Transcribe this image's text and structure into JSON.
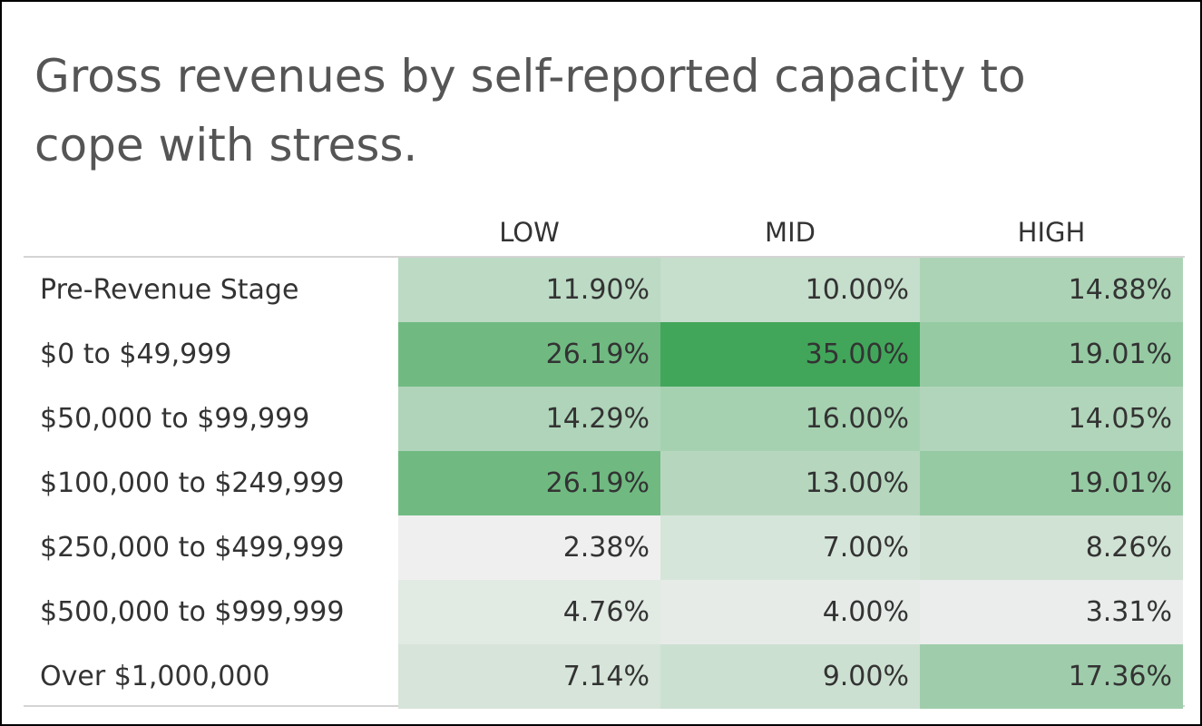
{
  "chart_data": {
    "type": "heatmap",
    "title": "Gross revenues by self-reported capacity to cope with stress.",
    "columns": [
      "LOW",
      "MID",
      "HIGH"
    ],
    "rows": [
      "Pre-Revenue Stage",
      "$0 to $49,999",
      "$50,000 to $99,999",
      "$100,000 to $249,999",
      "$250,000 to $499,999",
      "$500,000 to $999,999",
      "Over $1,000,000"
    ],
    "values": [
      [
        11.9,
        10.0,
        14.88
      ],
      [
        26.19,
        35.0,
        19.01
      ],
      [
        14.29,
        16.0,
        14.05
      ],
      [
        26.19,
        13.0,
        19.01
      ],
      [
        2.38,
        7.0,
        8.26
      ],
      [
        4.76,
        4.0,
        3.31
      ],
      [
        7.14,
        9.0,
        17.36
      ]
    ],
    "value_labels": [
      [
        "11.90%",
        "10.00%",
        "14.88%"
      ],
      [
        "26.19%",
        "35.00%",
        "19.01%"
      ],
      [
        "14.29%",
        "16.00%",
        "14.05%"
      ],
      [
        "26.19%",
        "13.00%",
        "19.01%"
      ],
      [
        "2.38%",
        "7.00%",
        "8.26%"
      ],
      [
        "4.76%",
        "4.00%",
        "3.31%"
      ],
      [
        "7.14%",
        "9.00%",
        "17.36%"
      ]
    ],
    "color_scale": {
      "low": "#efefef",
      "high": "#41a65a"
    },
    "grid": false
  }
}
